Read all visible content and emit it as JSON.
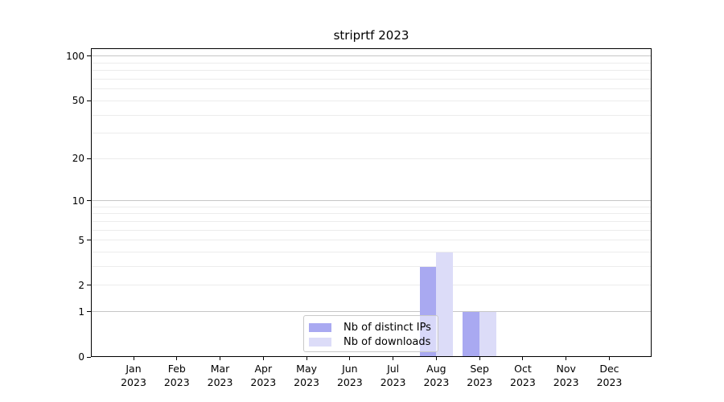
{
  "chart_data": {
    "type": "bar",
    "title": "striprtf 2023",
    "categories": [
      "Jan",
      "Feb",
      "Mar",
      "Apr",
      "May",
      "Jun",
      "Jul",
      "Aug",
      "Sep",
      "Oct",
      "Nov",
      "Dec"
    ],
    "x_tick_year": "2023",
    "series": [
      {
        "name": "Nb of distinct IPs",
        "color": "#a9a9f1",
        "values": [
          0,
          0,
          0,
          0,
          0,
          0,
          0,
          3,
          1,
          0,
          0,
          0
        ]
      },
      {
        "name": "Nb of downloads",
        "color": "#dcdcf8",
        "values": [
          0,
          0,
          0,
          0,
          0,
          0,
          0,
          4,
          1,
          0,
          0,
          0
        ]
      }
    ],
    "xlabel": "",
    "ylabel": "",
    "y_scale": "log10(1+x)",
    "y_ticks": [
      0,
      1,
      2,
      5,
      10,
      20,
      50,
      100
    ],
    "y_major_gridlines": [
      1,
      10,
      100
    ],
    "y_minor_gridlines": [
      2,
      3,
      4,
      5,
      6,
      7,
      8,
      9,
      20,
      30,
      40,
      50,
      60,
      70,
      80,
      90
    ],
    "ylim": [
      0,
      113
    ],
    "grid": "on",
    "legend_position": "lower center inside axes"
  },
  "colors": {
    "background": "#ffffff",
    "axis": "#000000",
    "major_grid": "#c6c6c6",
    "minor_grid": "#ececec",
    "legend_border": "#c9c9c9",
    "series_ips": "#a9a9f1",
    "series_downloads": "#dcdcf8"
  }
}
